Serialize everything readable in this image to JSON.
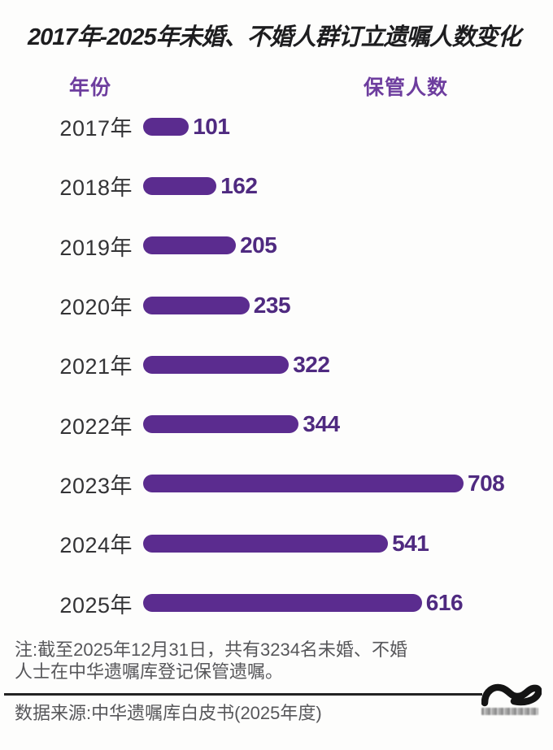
{
  "title": "2017年-2025年未婚、不婚人群订立遗嘱人数变化",
  "column_headers": {
    "year": "年份",
    "count": "保管人数"
  },
  "chart_data": {
    "type": "bar",
    "orientation": "horizontal",
    "title": "2017年-2025年未婚、不婚人群订立遗嘱人数变化",
    "categories": [
      "2017年",
      "2018年",
      "2019年",
      "2020年",
      "2021年",
      "2022年",
      "2023年",
      "2024年",
      "2025年"
    ],
    "values": [
      101,
      162,
      205,
      235,
      322,
      344,
      708,
      541,
      616
    ],
    "series_label": "保管人数",
    "xlim": [
      0,
      708
    ],
    "value_labels_shown": true,
    "grid": false,
    "legend": "none"
  },
  "footnote": {
    "line1": "注:截至2025年12月31日，共有3234名未婚、不婚",
    "line2": "人士在中华遗嘱库登记保管遗嘱。"
  },
  "source": "数据来源:中华遗嘱库白皮书(2025年度)",
  "icons": {
    "logo": "wave-tilde-logo"
  },
  "colors": {
    "bar": "#5b2c8f",
    "value_text": "#4f2a80",
    "header_text": "#6d3d9e",
    "title_text": "#1d1d1f",
    "year_text": "#333335",
    "note_text": "#57575a",
    "divider": "#232323",
    "logo": "#141414"
  }
}
